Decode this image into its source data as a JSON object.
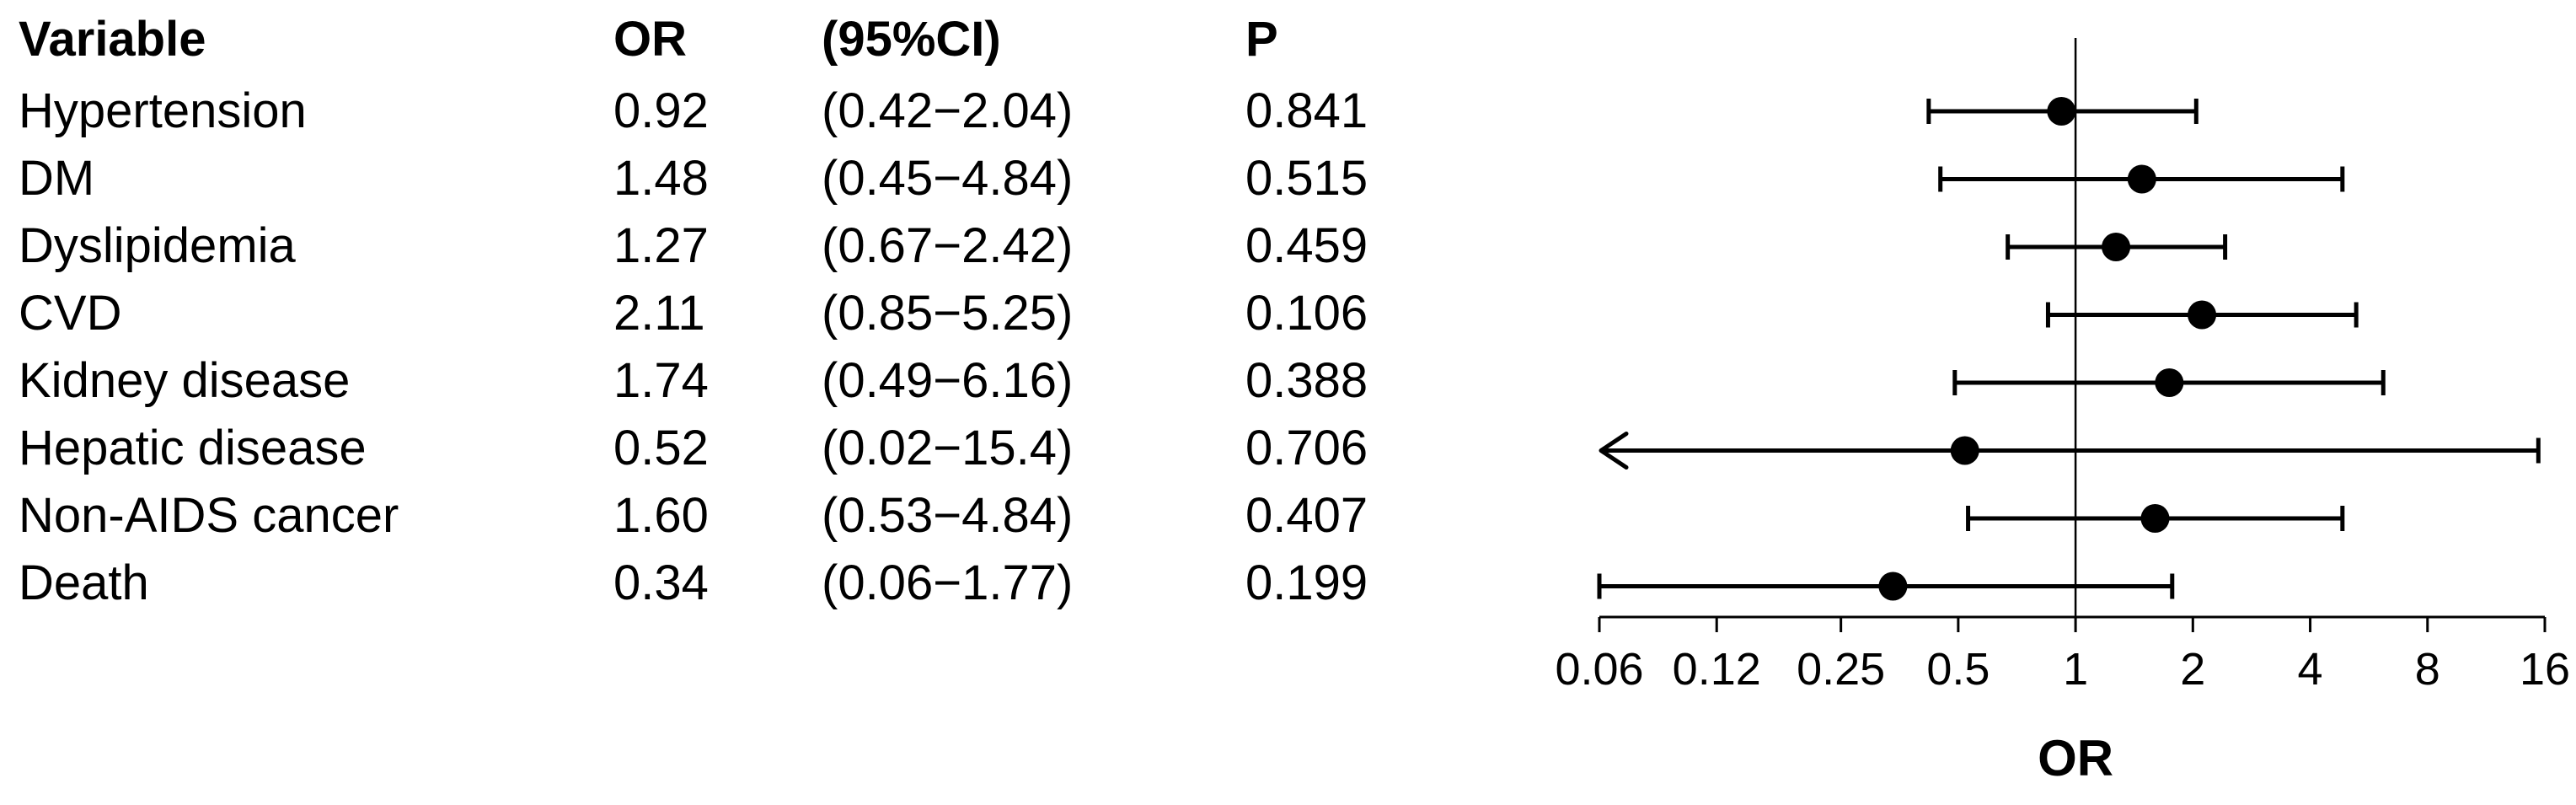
{
  "chart_data": {
    "type": "forest",
    "headers": {
      "variable": "Variable",
      "or": "OR",
      "ci": "(95%CI)",
      "p": "P"
    },
    "rows": [
      {
        "variable": "Hypertension",
        "or_label": "0.92",
        "ci_label": "(0.42−2.04)",
        "p_label": "0.841",
        "or": 0.92,
        "lower": 0.42,
        "upper": 2.04
      },
      {
        "variable": "DM",
        "or_label": "1.48",
        "ci_label": "(0.45−4.84)",
        "p_label": "0.515",
        "or": 1.48,
        "lower": 0.45,
        "upper": 4.84
      },
      {
        "variable": "Dyslipidemia",
        "or_label": "1.27",
        "ci_label": "(0.67−2.42)",
        "p_label": "0.459",
        "or": 1.27,
        "lower": 0.67,
        "upper": 2.42
      },
      {
        "variable": "CVD",
        "or_label": "2.11",
        "ci_label": "(0.85−5.25)",
        "p_label": "0.106",
        "or": 2.11,
        "lower": 0.85,
        "upper": 5.25
      },
      {
        "variable": "Kidney disease",
        "or_label": "1.74",
        "ci_label": "(0.49−6.16)",
        "p_label": "0.388",
        "or": 1.74,
        "lower": 0.49,
        "upper": 6.16
      },
      {
        "variable": "Hepatic disease",
        "or_label": "0.52",
        "ci_label": "(0.02−15.4)",
        "p_label": "0.706",
        "or": 0.52,
        "lower": 0.02,
        "upper": 15.4
      },
      {
        "variable": "Non-AIDS cancer",
        "or_label": "1.60",
        "ci_label": "(0.53−4.84)",
        "p_label": "0.407",
        "or": 1.6,
        "lower": 0.53,
        "upper": 4.84
      },
      {
        "variable": "Death",
        "or_label": "0.34",
        "ci_label": "(0.06−1.77)",
        "p_label": "0.199",
        "or": 0.34,
        "lower": 0.06,
        "upper": 1.77
      }
    ],
    "x_scale": "log2",
    "xlim": [
      0.06,
      16
    ],
    "x_ticks": [
      0.06,
      0.12,
      0.25,
      0.5,
      1,
      2,
      4,
      8,
      16
    ],
    "x_tick_labels": [
      "0.06",
      "0.12",
      "0.25",
      "0.5",
      "1",
      "2",
      "4",
      "8",
      "16"
    ],
    "xlabel": "OR",
    "reference_line": 1,
    "colors": {
      "ink": "#000000"
    }
  }
}
